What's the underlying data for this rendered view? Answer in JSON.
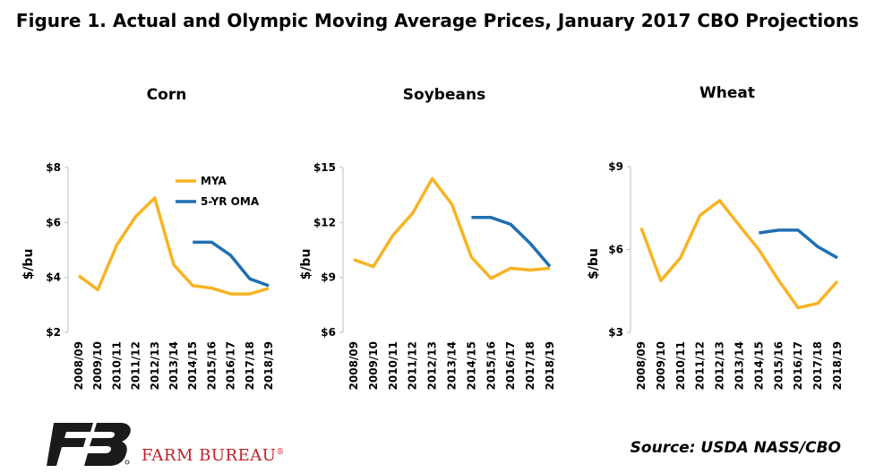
{
  "figure_title": "Figure 1. Actual and Olympic Moving Average Prices, January 2017 CBO Projections",
  "source": "Source: USDA NASS/CBO",
  "brand": {
    "name": "FARM BUREAU",
    "mark": "®"
  },
  "colors": {
    "mya": "#F8B323",
    "oma": "#1F6FB2",
    "axis": "#bfbfbf"
  },
  "chart_data": [
    {
      "type": "line",
      "title": "Corn",
      "ylabel": "$/bu",
      "ylim": [
        2,
        8
      ],
      "yticks": [
        2,
        4,
        6,
        8
      ],
      "ytick_labels": [
        "$2",
        "$4",
        "$6",
        "$8"
      ],
      "categories": [
        "2008/09",
        "2009/10",
        "2010/11",
        "2011/12",
        "2012/13",
        "2013/14",
        "2014/15",
        "2015/16",
        "2016/17",
        "2017/18",
        "2018/19"
      ],
      "legend": [
        "MYA",
        "5-YR OMA"
      ],
      "series": [
        {
          "name": "MYA",
          "values": [
            4.06,
            3.55,
            5.18,
            6.22,
            6.89,
            4.46,
            3.7,
            3.61,
            3.4,
            3.4,
            3.6
          ]
        },
        {
          "name": "5-YR OMA",
          "values": [
            null,
            null,
            null,
            null,
            null,
            null,
            5.28,
            5.28,
            4.8,
            3.95,
            3.7
          ]
        }
      ]
    },
    {
      "type": "line",
      "title": "Soybeans",
      "ylabel": "$/bu",
      "ylim": [
        6,
        15
      ],
      "yticks": [
        6,
        9,
        12,
        15
      ],
      "ytick_labels": [
        "$6",
        "$9",
        "$12",
        "$15"
      ],
      "categories": [
        "2008/09",
        "2009/10",
        "2010/11",
        "2011/12",
        "2012/13",
        "2013/14",
        "2014/15",
        "2015/16",
        "2016/17",
        "2017/18",
        "2018/19"
      ],
      "series": [
        {
          "name": "MYA",
          "values": [
            9.97,
            9.59,
            11.3,
            12.5,
            14.4,
            13.0,
            10.1,
            8.95,
            9.5,
            9.4,
            9.5
          ]
        },
        {
          "name": "5-YR OMA",
          "values": [
            null,
            null,
            null,
            null,
            null,
            null,
            12.27,
            12.27,
            11.9,
            10.85,
            9.6
          ]
        }
      ]
    },
    {
      "type": "line",
      "title": "Wheat",
      "ylabel": "$/bu",
      "ylim": [
        3,
        9
      ],
      "yticks": [
        3,
        6,
        9
      ],
      "ytick_labels": [
        "$3",
        "$6",
        "$9"
      ],
      "categories": [
        "2008/09",
        "2009/10",
        "2010/11",
        "2011/12",
        "2012/13",
        "2013/14",
        "2014/15",
        "2015/16",
        "2016/17",
        "2017/18",
        "2018/19"
      ],
      "series": [
        {
          "name": "MYA",
          "values": [
            6.78,
            4.87,
            5.7,
            7.24,
            7.77,
            6.87,
            5.99,
            4.89,
            3.89,
            4.05,
            4.85
          ]
        },
        {
          "name": "5-YR OMA",
          "values": [
            null,
            null,
            null,
            null,
            null,
            null,
            6.6,
            6.7,
            6.7,
            6.1,
            5.7
          ]
        }
      ]
    }
  ]
}
